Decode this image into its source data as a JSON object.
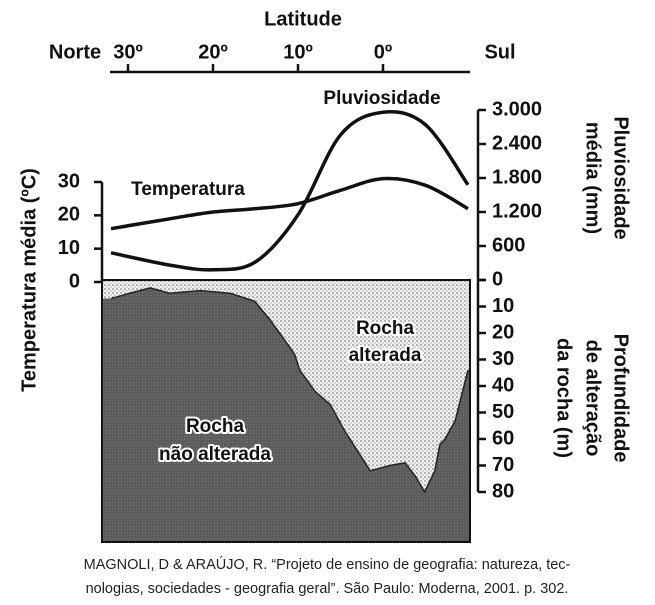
{
  "chart_data": {
    "type": "line",
    "xlabel": "Latitude",
    "x_left_label": "Norte",
    "x_right_label": "Sul",
    "x": [
      32,
      25,
      20,
      15,
      10,
      5,
      0,
      -5,
      -10
    ],
    "xlim": [
      32,
      -10
    ],
    "xticks": [
      {
        "value": 30,
        "label": "30º"
      },
      {
        "value": 20,
        "label": "20º"
      },
      {
        "value": 10,
        "label": "10º"
      },
      {
        "value": 0,
        "label": "0º"
      }
    ],
    "ylabel": "Temperatura média (ºC)",
    "ylim": [
      0,
      30
    ],
    "yticks": [
      0,
      10,
      20,
      30
    ],
    "y2label": [
      "Pluviosidade",
      "média (mm)"
    ],
    "y2lim": [
      0,
      3000
    ],
    "y2ticks": [
      0,
      600,
      {
        "value": 1200,
        "label": "1.200"
      },
      {
        "value": 1800,
        "label": "1.800"
      },
      {
        "value": 2400,
        "label": "2.400"
      },
      {
        "value": 3000,
        "label": "3.000"
      }
    ],
    "series": [
      {
        "name": "Temperatura",
        "color": "#111111",
        "values": [
          16,
          19,
          21,
          22,
          23.5,
          27.5,
          31,
          29,
          22
        ]
      },
      {
        "name": "Pluviosidade",
        "color": "#111111",
        "axis": "y2",
        "values": [
          480,
          260,
          180,
          320,
          1150,
          2560,
          2960,
          2740,
          1680
        ]
      }
    ],
    "depth": {
      "label": [
        "Profundidade",
        "de alteração",
        "da rocha (m)"
      ],
      "ylim": [
        0,
        80
      ],
      "yticks": [
        0,
        10,
        20,
        30,
        40,
        50,
        60,
        70,
        80
      ],
      "x": [
        32,
        29.8,
        27.4,
        25.1,
        21.5,
        18,
        15.1,
        13.3,
        11.5,
        10.4,
        9.8,
        8,
        6.2,
        4.5,
        2.7,
        1.5,
        -0.8,
        -2.6,
        -3.8,
        -4.9,
        -6.1,
        -6.7,
        -7.3,
        -8.5,
        -10
      ],
      "values": [
        7,
        5,
        3,
        5,
        4,
        5,
        8,
        15,
        23,
        28,
        34,
        42,
        47,
        57,
        66,
        72,
        70,
        69,
        74,
        80,
        72,
        62,
        60,
        53,
        34
      ],
      "upper_label": [
        "Rocha",
        "alterada"
      ],
      "lower_label": [
        "Rocha",
        "não alterada"
      ]
    },
    "caption": [
      "MAGNOLI, D & ARAÚJO, R. “Projeto de ensino de geografia: natureza, tec-",
      "nologias, sociedades - geografia geral”. São Paulo: Moderna, 2001. p. 302."
    ]
  }
}
